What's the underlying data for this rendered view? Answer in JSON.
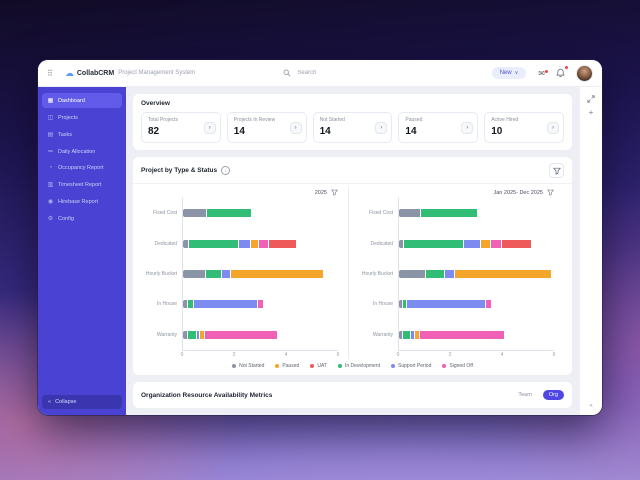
{
  "header": {
    "brand": "CollabCRM",
    "product": "Project Management System",
    "search_placeholder": "Search",
    "new_button_label": "New",
    "new_button_caret": "∨"
  },
  "icons": {
    "app_grid": "⠿",
    "logo_cloud": "☁",
    "mail": "✉",
    "stat_arrow": "›",
    "collapse": "«",
    "plus": "+",
    "rail_bottom": "«",
    "info": "i"
  },
  "sidebar": {
    "items": [
      {
        "label": "Dashboard",
        "icon_glyph": "▦",
        "active": true
      },
      {
        "label": "Projects",
        "icon_glyph": "◫",
        "active": false
      },
      {
        "label": "Tasks",
        "icon_glyph": "▤",
        "active": false
      },
      {
        "label": "Daily Allocation",
        "icon_glyph": "≔",
        "active": false
      },
      {
        "label": "Occupancy Report",
        "icon_glyph": "◔",
        "active": false
      },
      {
        "label": "Timesheet Report",
        "icon_glyph": "▥",
        "active": false
      },
      {
        "label": "Hirebase Report",
        "icon_glyph": "◉",
        "active": false
      },
      {
        "label": "Config",
        "icon_glyph": "⚙",
        "active": false
      }
    ],
    "collapse_label": "Collapse"
  },
  "overview": {
    "title": "Overview",
    "stats": [
      {
        "label": "Total Projects",
        "value": "82"
      },
      {
        "label": "Projects In Review",
        "value": "14"
      },
      {
        "label": "Not Started",
        "value": "14"
      },
      {
        "label": "Paused",
        "value": "14"
      },
      {
        "label": "Active Hired",
        "value": "10"
      }
    ]
  },
  "project_section": {
    "title": "Project by Type & Status"
  },
  "chart_data": {
    "type": "bar",
    "orientation": "horizontal",
    "stacked": true,
    "categories": [
      "Fixed Cost",
      "Dedicated",
      "Hourly Bucket",
      "In House",
      "Warranty"
    ],
    "series_legend": [
      {
        "name": "Not Started",
        "color": "#8b93a7"
      },
      {
        "name": "Paused",
        "color": "#f4a62a"
      },
      {
        "name": "UAT",
        "color": "#ee5a5a"
      },
      {
        "name": "In Development",
        "color": "#32bd77"
      },
      {
        "name": "Support Period",
        "color": "#7d8bf1"
      },
      {
        "name": "Signed Off",
        "color": "#f060b5"
      }
    ],
    "x_ticks": [
      0,
      2,
      4,
      6
    ],
    "x_max": 6,
    "grid": false,
    "legend_position": "bottom",
    "charts": [
      {
        "filter_label": "2025",
        "rows": [
          {
            "category": "Fixed Cost",
            "segments": [
              {
                "series": "Not Started",
                "value": 0.9
              },
              {
                "series": "In Development",
                "value": 1.7
              }
            ]
          },
          {
            "category": "Dedicated",
            "segments": [
              {
                "series": "Not Started",
                "value": 0.2
              },
              {
                "series": "In Development",
                "value": 1.9
              },
              {
                "series": "Support Period",
                "value": 0.4
              },
              {
                "series": "Paused",
                "value": 0.3
              },
              {
                "series": "Signed Off",
                "value": 0.35
              },
              {
                "series": "UAT",
                "value": 1.05
              }
            ]
          },
          {
            "category": "Hourly Bucket",
            "segments": [
              {
                "series": "Not Started",
                "value": 0.85
              },
              {
                "series": "In Development",
                "value": 0.6
              },
              {
                "series": "Support Period",
                "value": 0.3
              },
              {
                "series": "Paused",
                "value": 3.55
              }
            ]
          },
          {
            "category": "In House",
            "segments": [
              {
                "series": "Not Started",
                "value": 0.15
              },
              {
                "series": "In Development",
                "value": 0.2
              },
              {
                "series": "Support Period",
                "value": 2.45
              },
              {
                "series": "Signed Off",
                "value": 0.2
              }
            ]
          },
          {
            "category": "Warranty",
            "segments": [
              {
                "series": "Not Started",
                "value": 0.15
              },
              {
                "series": "In Development",
                "value": 0.3
              },
              {
                "series": "Support Period",
                "value": 0.1
              },
              {
                "series": "Paused",
                "value": 0.15
              },
              {
                "series": "Signed Off",
                "value": 2.8
              }
            ]
          }
        ]
      },
      {
        "filter_label": "Jan 2025- Dec 2025",
        "rows": [
          {
            "category": "Fixed Cost",
            "segments": [
              {
                "series": "Not Started",
                "value": 0.8
              },
              {
                "series": "In Development",
                "value": 2.2
              }
            ]
          },
          {
            "category": "Dedicated",
            "segments": [
              {
                "series": "Not Started",
                "value": 0.15
              },
              {
                "series": "In Development",
                "value": 2.3
              },
              {
                "series": "Support Period",
                "value": 0.6
              },
              {
                "series": "Paused",
                "value": 0.35
              },
              {
                "series": "Signed Off",
                "value": 0.4
              },
              {
                "series": "UAT",
                "value": 1.1
              }
            ]
          },
          {
            "category": "Hourly Bucket",
            "segments": [
              {
                "series": "Not Started",
                "value": 1.0
              },
              {
                "series": "In Development",
                "value": 0.7
              },
              {
                "series": "Support Period",
                "value": 0.35
              },
              {
                "series": "Paused",
                "value": 3.7
              }
            ]
          },
          {
            "category": "In House",
            "segments": [
              {
                "series": "Not Started",
                "value": 0.1
              },
              {
                "series": "In Development",
                "value": 0.15
              },
              {
                "series": "Support Period",
                "value": 3.0
              },
              {
                "series": "Signed Off",
                "value": 0.2
              }
            ]
          },
          {
            "category": "Warranty",
            "segments": [
              {
                "series": "Not Started",
                "value": 0.1
              },
              {
                "series": "In Development",
                "value": 0.3
              },
              {
                "series": "Support Period",
                "value": 0.1
              },
              {
                "series": "Paused",
                "value": 0.15
              },
              {
                "series": "Signed Off",
                "value": 3.25
              }
            ]
          }
        ]
      }
    ]
  },
  "resource_section": {
    "title": "Organization Resource Availability Metrics",
    "toggle": [
      {
        "label": "Team",
        "selected": false
      },
      {
        "label": "Org",
        "selected": true
      }
    ]
  },
  "colors": {
    "sidebar_bg": "#4942d3",
    "sidebar_active_bg": "#625bea",
    "accent": "#4f46e5",
    "page_bg": "#edeff4",
    "badge_red": "#ef4444"
  }
}
